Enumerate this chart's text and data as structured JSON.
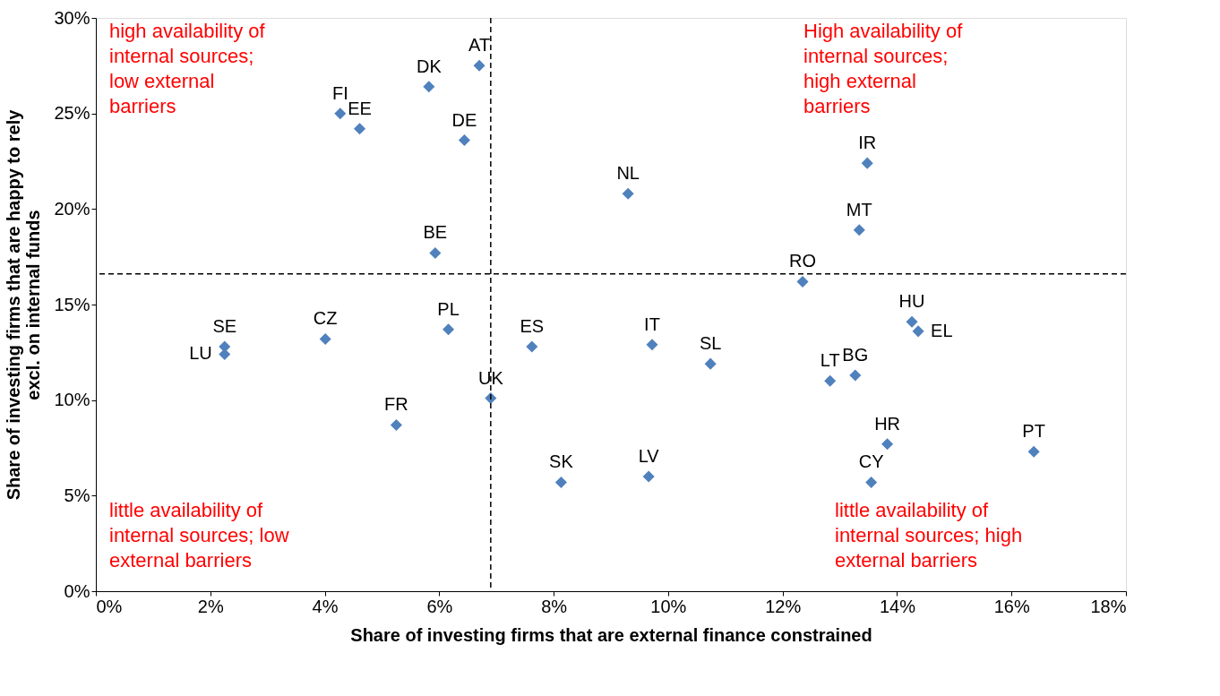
{
  "chart_data": {
    "type": "scatter",
    "xlabel": "Share of investing firms that are external finance constrained",
    "ylabel": "Share of investing firms that are happy to rely\nexcl. on internal funds",
    "x": [
      6.7,
      5.82,
      4.27,
      4.61,
      6.44,
      9.3,
      13.48,
      13.34,
      12.35,
      5.93,
      14.26,
      14.37,
      2.25,
      2.25,
      4.01,
      6.16,
      7.62,
      9.72,
      10.74,
      12.83,
      13.27,
      6.9,
      5.25,
      13.83,
      16.39,
      8.13,
      9.66,
      13.55
    ],
    "series": [
      {
        "color": "#4f81bd",
        "values": [
          27.5,
          26.4,
          25.0,
          24.2,
          23.6,
          20.8,
          22.4,
          18.9,
          16.2,
          17.7,
          14.1,
          13.6,
          12.8,
          12.4,
          13.2,
          13.7,
          12.8,
          12.9,
          11.9,
          11.0,
          11.3,
          10.1,
          8.7,
          7.7,
          7.3,
          5.7,
          6.0,
          5.7
        ]
      }
    ],
    "marker": "diamond",
    "xlim": [
      0,
      18
    ],
    "ylim": [
      0,
      30
    ],
    "xticks": [
      {
        "value": 0,
        "label": "0%"
      },
      {
        "value": 2,
        "label": "2%"
      },
      {
        "value": 4,
        "label": "4%"
      },
      {
        "value": 6,
        "label": "6%"
      },
      {
        "value": 8,
        "label": "8%"
      },
      {
        "value": 10,
        "label": "10%"
      },
      {
        "value": 12,
        "label": "12%"
      },
      {
        "value": 14,
        "label": "14%"
      },
      {
        "value": 16,
        "label": "16%"
      },
      {
        "value": 18,
        "label": "18%"
      }
    ],
    "yticks": [
      {
        "value": 0,
        "label": "0%"
      },
      {
        "value": 5,
        "label": "5%"
      },
      {
        "value": 10,
        "label": "10%"
      },
      {
        "value": 15,
        "label": "15%"
      },
      {
        "value": 20,
        "label": "20%"
      },
      {
        "value": 25,
        "label": "25%"
      },
      {
        "value": 30,
        "label": "30%"
      }
    ],
    "grid": false,
    "legend": false,
    "ref_lines": [
      {
        "axis": "x",
        "value": 6.9,
        "color": "#000000",
        "line_style": "dashed"
      },
      {
        "axis": "y",
        "value": 16.6,
        "color": "#000000",
        "line_style": "dashed"
      }
    ],
    "annotations": [
      "high availability of\ninternal sources;\nlow external\nbarriers",
      "High availability of\ninternal sources;\nhigh external\nbarriers",
      "little availability of\ninternal sources; low\nexternal barriers",
      "little availability of\ninternal sources; high\nexternal barriers",
      {
        "text": "AT",
        "x": 6.7,
        "y": 27.5
      },
      {
        "text": "DK",
        "x": 5.82,
        "y": 26.4
      },
      {
        "text": "FI",
        "x": 4.27,
        "y": 25.0
      },
      {
        "text": "EE",
        "x": 4.61,
        "y": 24.2
      },
      {
        "text": "DE",
        "x": 6.44,
        "y": 23.6
      },
      {
        "text": "NL",
        "x": 9.3,
        "y": 20.8
      },
      {
        "text": "IR",
        "x": 13.48,
        "y": 22.4
      },
      {
        "text": "MT",
        "x": 13.34,
        "y": 18.9
      },
      {
        "text": "RO",
        "x": 12.35,
        "y": 16.2
      },
      {
        "text": "BE",
        "x": 5.93,
        "y": 17.7
      },
      {
        "text": "HU",
        "x": 14.26,
        "y": 14.1
      },
      {
        "text": "EL",
        "x": 14.37,
        "y": 13.6
      },
      {
        "text": "SE",
        "x": 2.25,
        "y": 12.8
      },
      {
        "text": "LU",
        "x": 2.25,
        "y": 12.4
      },
      {
        "text": "CZ",
        "x": 4.01,
        "y": 13.2
      },
      {
        "text": "PL",
        "x": 6.16,
        "y": 13.7
      },
      {
        "text": "ES",
        "x": 7.62,
        "y": 12.8
      },
      {
        "text": "IT",
        "x": 9.72,
        "y": 12.9
      },
      {
        "text": "SL",
        "x": 10.74,
        "y": 11.9
      },
      {
        "text": "LT",
        "x": 12.83,
        "y": 11.0
      },
      {
        "text": "BG",
        "x": 13.27,
        "y": 11.3
      },
      {
        "text": "UK",
        "x": 6.9,
        "y": 10.1
      },
      {
        "text": "FR",
        "x": 5.25,
        "y": 8.7
      },
      {
        "text": "HR",
        "x": 13.83,
        "y": 7.7
      },
      {
        "text": "PT",
        "x": 16.39,
        "y": 7.3
      },
      {
        "text": "SK",
        "x": 8.13,
        "y": 5.7
      },
      {
        "text": "LV",
        "x": 9.66,
        "y": 6.0
      },
      {
        "text": "CY",
        "x": 13.55,
        "y": 5.7
      }
    ]
  }
}
